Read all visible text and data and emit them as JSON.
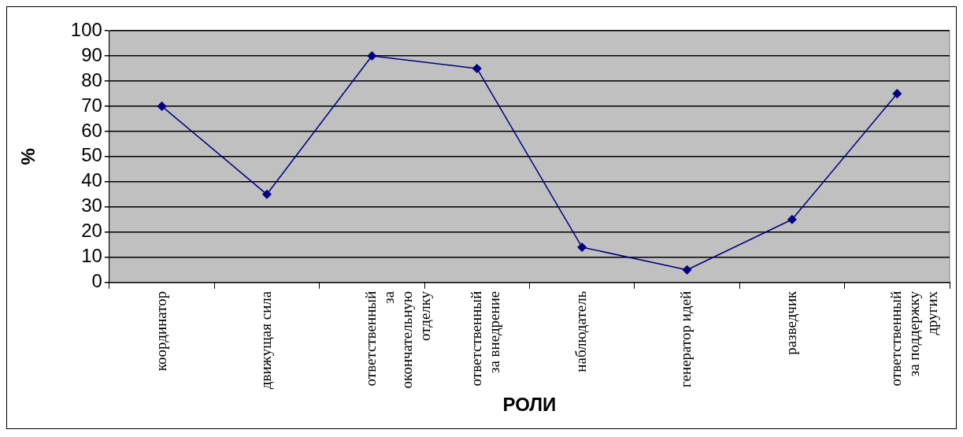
{
  "chart_data": {
    "type": "line",
    "xlabel": "РОЛИ",
    "ylabel": "%",
    "categories": [
      "координатор",
      "движущая сила",
      "ответственный за окончательную отделку",
      "ответственный за внедрение",
      "наблюдатель",
      "генератор идей",
      "разведчик",
      "ответственный за поддержку других"
    ],
    "values": [
      70,
      35,
      90,
      85,
      14,
      5,
      25,
      75
    ],
    "color": "#000080",
    "marker": "diamond",
    "line_style": "solid",
    "ylim": [
      0,
      100
    ],
    "yticks": [
      0,
      10,
      20,
      30,
      40,
      50,
      60,
      70,
      80,
      90,
      100
    ],
    "grid": "y"
  }
}
